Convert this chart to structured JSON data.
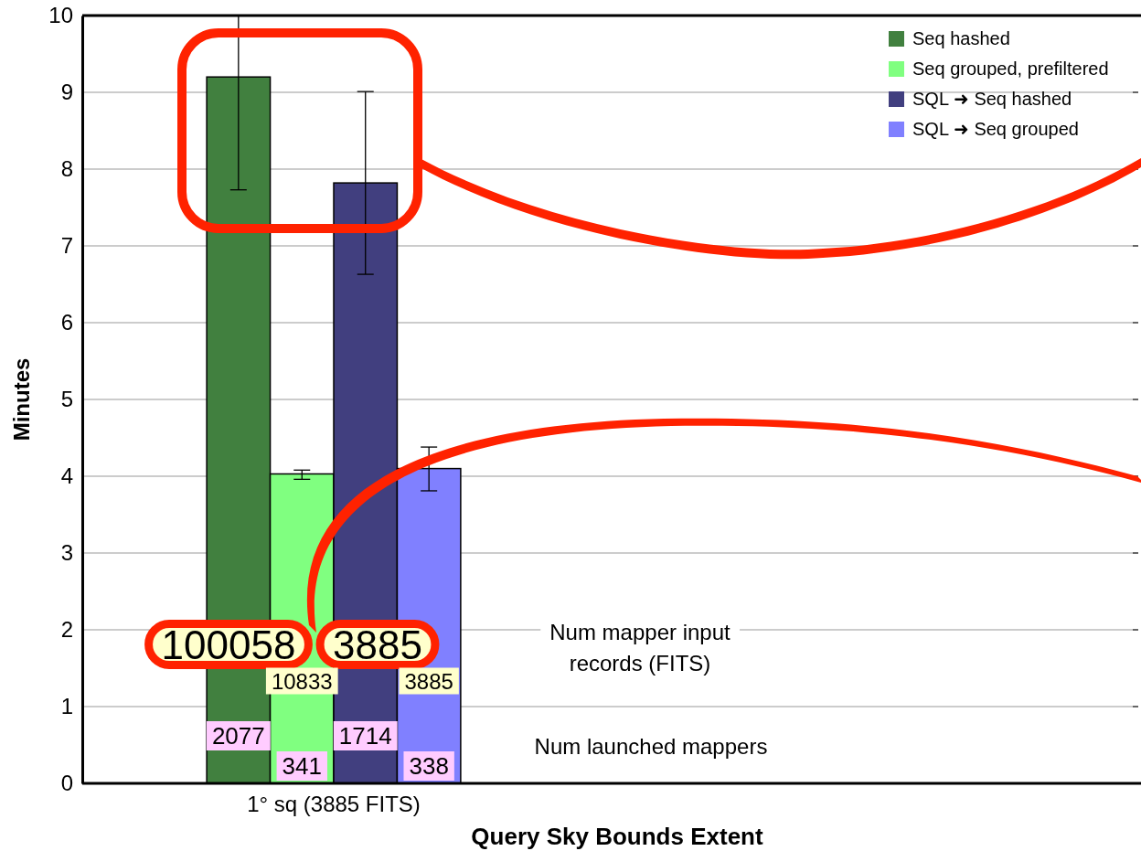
{
  "chart_data": {
    "type": "bar",
    "xlabel": "Query Sky Bounds Extent",
    "ylabel": "Minutes",
    "categories": [
      "1° sq (3885 FITS)"
    ],
    "series": [
      {
        "name": "Seq hashed",
        "color": "#41803f",
        "values": [
          9.2
        ],
        "errors": [
          [
            7.73,
            10
          ]
        ]
      },
      {
        "name": "Seq grouped, prefiltered",
        "color": "#80ff80",
        "values": [
          4.03
        ],
        "errors": [
          [
            3.96,
            4.08
          ]
        ]
      },
      {
        "name": "SQL ➜ Seq hashed",
        "color": "#413f7f",
        "values": [
          7.82
        ],
        "errors": [
          [
            6.63,
            9.01
          ]
        ]
      },
      {
        "name": "SQL ➜ Seq grouped",
        "color": "#8080ff",
        "values": [
          4.1
        ],
        "errors": [
          [
            3.81,
            4.38
          ]
        ]
      }
    ],
    "ylim": [
      0,
      10
    ],
    "yticks": [
      0,
      1,
      2,
      3,
      4,
      5,
      6,
      7,
      8,
      9,
      10
    ],
    "grid": "y",
    "legend": "top right",
    "annotations": [
      "100058",
      "3885",
      "10833",
      "3885",
      "Num mapper input records (FITS)",
      "Num launched mappers",
      "2077",
      "341",
      "1714",
      "338"
    ]
  }
}
